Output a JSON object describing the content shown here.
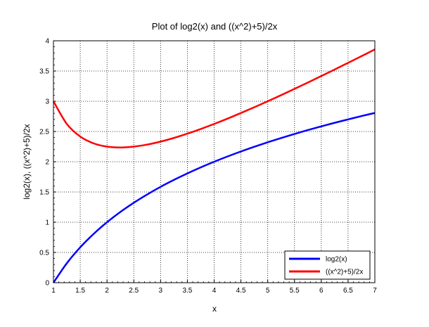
{
  "chart_data": {
    "type": "line",
    "title": "Plot of log2(x) and ((x^2)+5)/2x",
    "xlabel": "x",
    "ylabel": "log2(x), ((x^2)+5)/2x",
    "xlim": [
      1,
      7
    ],
    "ylim": [
      0,
      4
    ],
    "x_ticks": [
      "1",
      "1.5",
      "2",
      "2.5",
      "3",
      "3.5",
      "4",
      "4.5",
      "5",
      "5.5",
      "6",
      "6.5",
      "7"
    ],
    "y_ticks": [
      "0",
      "0.5",
      "1",
      "1.5",
      "2",
      "2.5",
      "3",
      "3.5",
      "4"
    ],
    "grid": true,
    "grid_style": "dotted",
    "legend_position": "bottom-right",
    "x": [
      1,
      1.25,
      1.5,
      1.75,
      2,
      2.25,
      2.5,
      2.75,
      3,
      3.25,
      3.5,
      3.75,
      4,
      4.25,
      4.5,
      4.75,
      5,
      5.25,
      5.5,
      5.75,
      6,
      6.25,
      6.5,
      6.75,
      7
    ],
    "series": [
      {
        "name": "log2(x)",
        "color": "#0000ff",
        "values": [
          0,
          0.322,
          0.585,
          0.807,
          1,
          1.17,
          1.322,
          1.459,
          1.585,
          1.7,
          1.807,
          1.907,
          2,
          2.087,
          2.17,
          2.248,
          2.322,
          2.392,
          2.459,
          2.524,
          2.585,
          2.644,
          2.7,
          2.755,
          2.807
        ]
      },
      {
        "name": "((x^2)+5)/2x",
        "color": "#ff0000",
        "values": [
          3,
          2.625,
          2.417,
          2.304,
          2.25,
          2.236,
          2.25,
          2.284,
          2.333,
          2.394,
          2.464,
          2.542,
          2.625,
          2.713,
          2.806,
          2.901,
          3,
          3.101,
          3.205,
          3.31,
          3.417,
          3.525,
          3.635,
          3.745,
          3.857
        ]
      }
    ]
  }
}
